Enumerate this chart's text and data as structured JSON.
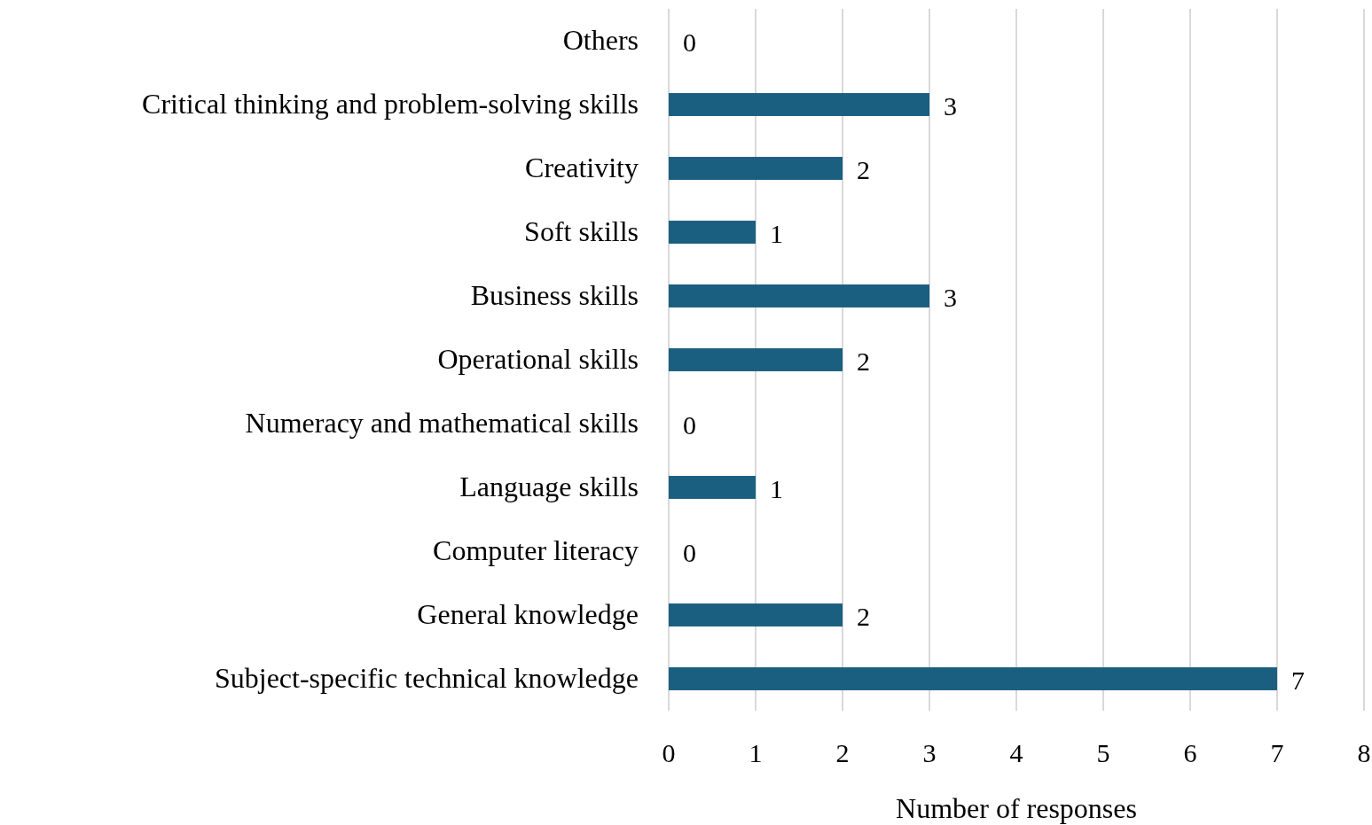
{
  "chart_data": {
    "type": "bar",
    "orientation": "horizontal",
    "xlabel": "Number of responses",
    "categories": [
      "Others",
      "Critical thinking and problem-solving skills",
      "Creativity",
      "Soft skills",
      "Business skills",
      "Operational skills",
      "Numeracy and mathematical skills",
      "Language skills",
      "Computer literacy",
      "General knowledge",
      "Subject-specific technical knowledge"
    ],
    "values": [
      0,
      3,
      2,
      1,
      3,
      2,
      0,
      1,
      0,
      2,
      7
    ],
    "color": "#1b5f80",
    "xlim": [
      0,
      8
    ],
    "xticks": [
      0,
      1,
      2,
      3,
      4,
      5,
      6,
      7,
      8
    ],
    "grid": "x",
    "data_labels": true
  }
}
